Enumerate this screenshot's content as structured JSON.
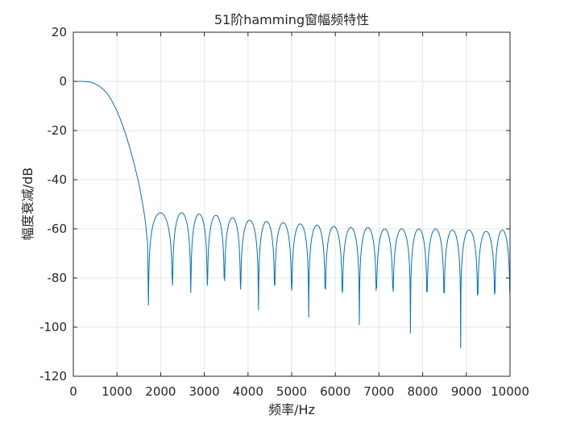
{
  "chart_data": {
    "type": "line",
    "title": "51阶hamming窗幅频特性",
    "xlabel": "频率/Hz",
    "ylabel": "幅度衰减/dB",
    "xlim": [
      0,
      10000
    ],
    "ylim": [
      -120,
      20
    ],
    "xticks": [
      0,
      1000,
      2000,
      3000,
      4000,
      5000,
      6000,
      7000,
      8000,
      9000,
      10000
    ],
    "yticks": [
      20,
      0,
      -20,
      -40,
      -60,
      -80,
      -100,
      -120
    ],
    "xtick_labels": [
      "0",
      "1000",
      "2000",
      "3000",
      "4000",
      "5000",
      "6000",
      "7000",
      "8000",
      "9000",
      "10000"
    ],
    "ytick_labels": [
      "20",
      "0",
      "-20",
      "-40",
      "-60",
      "-80",
      "-100",
      "-120"
    ],
    "grid": true,
    "box": true,
    "line_color": "#0072BD",
    "series": [
      {
        "x": [
          0,
          200,
          400,
          500,
          600,
          700,
          800,
          900,
          1000,
          1100,
          1200,
          1300,
          1400,
          1500,
          1600,
          1650,
          1700,
          1720,
          1740,
          1760,
          1800,
          1850,
          1900,
          2000,
          2100,
          2200
        ],
        "y": [
          0,
          0,
          -0.3,
          -1.0,
          -2.0,
          -3.5,
          -5.5,
          -8.5,
          -12,
          -16.5,
          -21.5,
          -27.5,
          -34,
          -41.5,
          -51,
          -57,
          -66,
          -91,
          -72,
          -60,
          -57,
          -56,
          -55,
          -54,
          -53.5,
          -54
        ]
      }
    ],
    "nulls": [
      {
        "x": 1720,
        "y": -91
      },
      {
        "x": 2270,
        "y": -83
      },
      {
        "x": 2690,
        "y": -86
      },
      {
        "x": 3070,
        "y": -83
      },
      {
        "x": 3460,
        "y": -77
      },
      {
        "x": 3830,
        "y": -84.5
      },
      {
        "x": 4240,
        "y": -93
      },
      {
        "x": 4610,
        "y": -82
      },
      {
        "x": 5000,
        "y": -85
      },
      {
        "x": 5390,
        "y": -96
      },
      {
        "x": 5770,
        "y": -82
      },
      {
        "x": 6160,
        "y": -86
      },
      {
        "x": 6550,
        "y": -99
      },
      {
        "x": 6940,
        "y": -83
      },
      {
        "x": 7320,
        "y": -84
      },
      {
        "x": 7720,
        "y": -102.5
      },
      {
        "x": 8100,
        "y": -84
      },
      {
        "x": 8490,
        "y": -86
      },
      {
        "x": 8870,
        "y": -108.5
      },
      {
        "x": 9260,
        "y": -87
      },
      {
        "x": 9650,
        "y": -86
      },
      {
        "x": 10000,
        "y": -76
      }
    ],
    "sidelobe_peaks": [
      {
        "x": 2070,
        "y": -53.5
      },
      {
        "x": 2480,
        "y": -53.5
      },
      {
        "x": 2880,
        "y": -54
      },
      {
        "x": 3260,
        "y": -54.5
      },
      {
        "x": 3650,
        "y": -55.5
      },
      {
        "x": 4040,
        "y": -56.5
      },
      {
        "x": 4420,
        "y": -57
      },
      {
        "x": 4810,
        "y": -57.5
      },
      {
        "x": 5200,
        "y": -58
      },
      {
        "x": 5580,
        "y": -58.5
      },
      {
        "x": 5970,
        "y": -59
      },
      {
        "x": 6360,
        "y": -59.5
      },
      {
        "x": 6740,
        "y": -59.5
      },
      {
        "x": 7130,
        "y": -60
      },
      {
        "x": 7520,
        "y": -60
      },
      {
        "x": 7910,
        "y": -60
      },
      {
        "x": 8290,
        "y": -60
      },
      {
        "x": 8680,
        "y": -60.5
      },
      {
        "x": 9060,
        "y": -60.5
      },
      {
        "x": 9450,
        "y": -61
      },
      {
        "x": 9840,
        "y": -60.5
      }
    ]
  }
}
